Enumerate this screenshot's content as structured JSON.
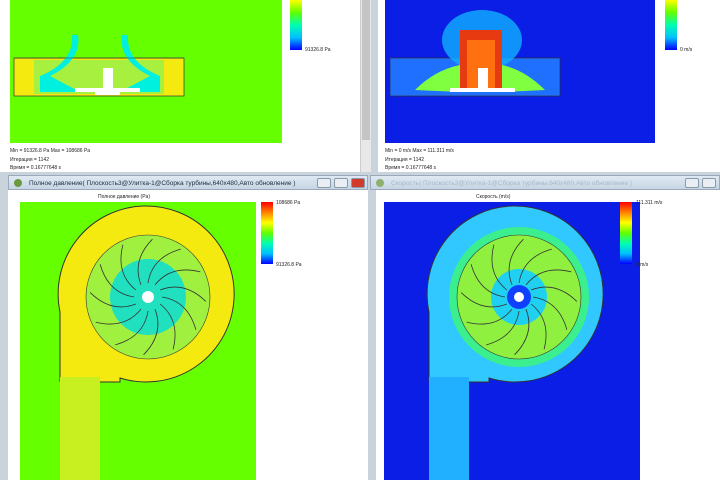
{
  "top_left": {
    "colorbar_min": "91326.8 Pa",
    "info": [
      "Min = 91326.8 Pa   Max = 108686 Pa",
      "Итерация = 1142",
      "Время = 0.16777648 s"
    ]
  },
  "top_right": {
    "colorbar_min": "0 m/s",
    "info": [
      "Min = 0 m/s   Max = 111.311 m/s",
      "Итерация = 1142",
      "Время = 0.16777648 s"
    ]
  },
  "bottom_left": {
    "window_title": "Полное давление( Плоскость3@Улитка-1@Сборка турбины,640x480,Авто обновление )",
    "plot_title": "Полное давление (Pa)",
    "colorbar_max": "108686 Pa",
    "colorbar_min": "91326.8 Pa"
  },
  "bottom_right": {
    "window_title": "Скорость( Плоскость3@Улитка-1@Сборка турбины,640x480,Авто обновление )",
    "plot_title": "Скорость (m/s)",
    "colorbar_max": "111.311 m/s",
    "colorbar_min": "0 m/s"
  },
  "colors": {
    "pressure_bg": "#66ff00",
    "velocity_bg": "#0a1ee6",
    "titlebar": "#d4e0ec"
  }
}
